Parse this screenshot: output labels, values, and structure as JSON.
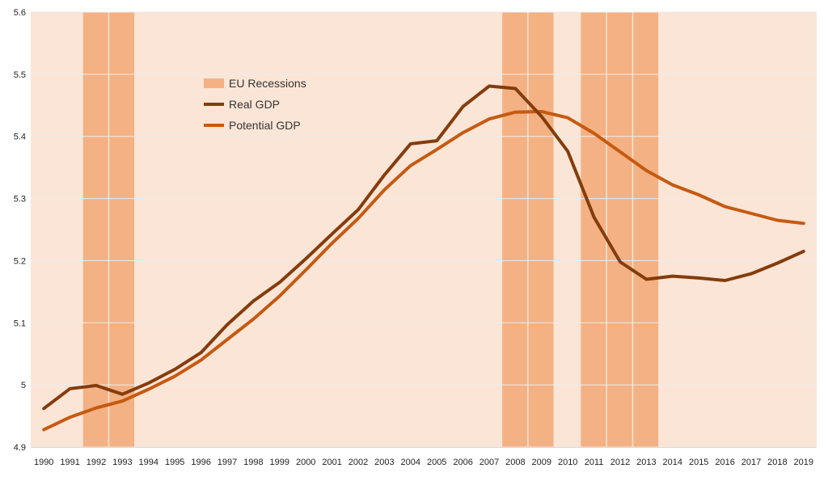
{
  "chart_data": {
    "type": "line",
    "title": "",
    "xlabel": "",
    "ylabel": "",
    "x": [
      1990,
      1991,
      1992,
      1993,
      1994,
      1995,
      1996,
      1997,
      1998,
      1999,
      2000,
      2001,
      2002,
      2003,
      2004,
      2005,
      2006,
      2007,
      2008,
      2009,
      2010,
      2011,
      2012,
      2013,
      2014,
      2015,
      2016,
      2017,
      2018,
      2019
    ],
    "x_tick_labels": [
      "1990",
      "1991",
      "1992",
      "1993",
      "1994",
      "1995",
      "1996",
      "1997",
      "1998",
      "1999",
      "2000",
      "2001",
      "2002",
      "2003",
      "2004",
      "2005",
      "2006",
      "2007",
      "2008",
      "2009",
      "2010",
      "2011",
      "2012",
      "2013",
      "2014",
      "2015",
      "2016",
      "2017",
      "2018",
      "2019"
    ],
    "ylim": [
      4.9,
      5.6
    ],
    "y_ticks": [
      4.9,
      5,
      5.1,
      5.2,
      5.3,
      5.4,
      5.5,
      5.6
    ],
    "y_tick_labels": [
      "4.9",
      "5",
      "5.1",
      "5.2",
      "5.3",
      "5.4",
      "5.5",
      "5.6"
    ],
    "grid": "horizontal",
    "legend_position": "top-left inside plot",
    "recessions": {
      "name": "EU Recessions",
      "color": "#f4b183",
      "years": [
        1992,
        1993,
        2008,
        2009,
        2011,
        2012,
        2013
      ]
    },
    "series": [
      {
        "name": "Real GDP",
        "color": "#843c0c",
        "values": [
          4.962,
          4.994,
          4.999,
          4.985,
          5.003,
          5.025,
          5.052,
          5.097,
          5.135,
          5.165,
          5.203,
          5.243,
          5.282,
          5.338,
          5.388,
          5.393,
          5.448,
          5.481,
          5.477,
          5.432,
          5.376,
          5.27,
          5.198,
          5.17,
          5.175,
          5.172,
          5.168,
          5.179,
          5.196,
          5.215
        ]
      },
      {
        "name": "Potential GDP",
        "color": "#c55a11",
        "values": [
          4.928,
          4.948,
          4.963,
          4.974,
          4.993,
          5.014,
          5.04,
          5.073,
          5.106,
          5.143,
          5.185,
          5.228,
          5.268,
          5.314,
          5.353,
          5.379,
          5.406,
          5.428,
          5.439,
          5.44,
          5.43,
          5.405,
          5.375,
          5.345,
          5.322,
          5.306,
          5.287,
          5.276,
          5.265,
          5.26
        ]
      }
    ],
    "plot_background": "#fbe5d6"
  }
}
